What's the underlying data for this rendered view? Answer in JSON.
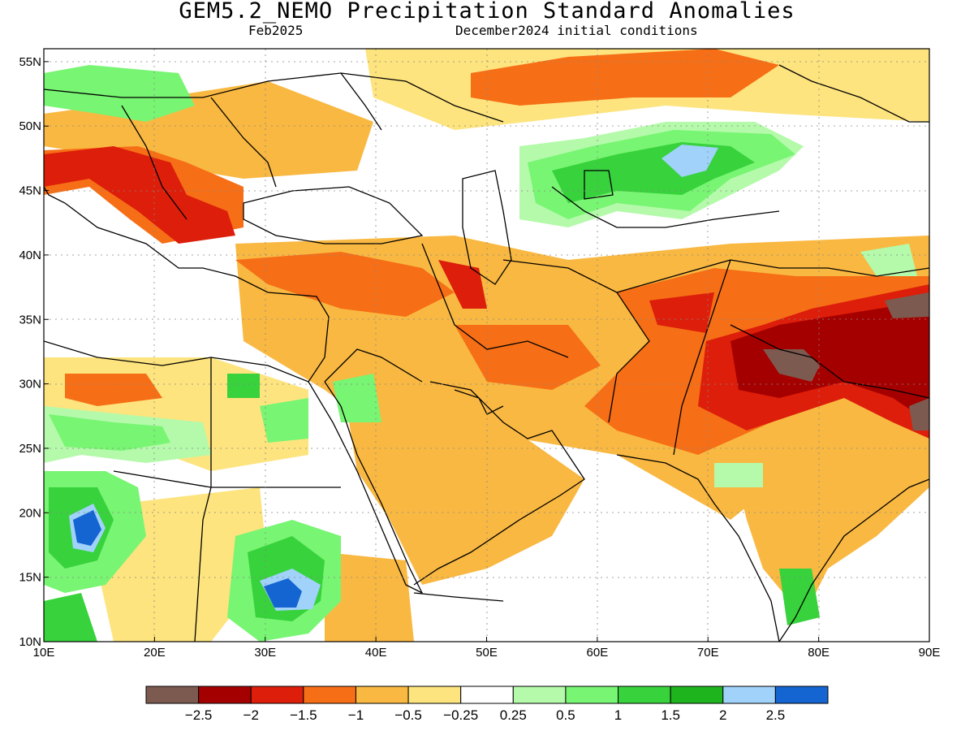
{
  "header": {
    "title": "GEM5.2_NEMO Precipitation Standard Anomalies",
    "month": "Feb2025",
    "init": "December2024 initial conditions"
  },
  "map": {
    "lon_range": [
      10,
      90
    ],
    "lat_range": [
      10,
      56
    ],
    "lon_ticks": [
      "10E",
      "20E",
      "30E",
      "40E",
      "50E",
      "60E",
      "70E",
      "80E",
      "90E"
    ],
    "lat_ticks": [
      "10N",
      "15N",
      "20N",
      "25N",
      "30N",
      "35N",
      "40N",
      "45N",
      "50N",
      "55N"
    ],
    "land_color": "#ffffff",
    "coastline_color": "#000000"
  },
  "colorbar": {
    "colors": [
      "#7d5a4f",
      "#a50000",
      "#dc1e0a",
      "#f66e16",
      "#f9b841",
      "#fde47e",
      "#ffffff",
      "#b4faaa",
      "#78f573",
      "#37d23c",
      "#1eb41e",
      "#a0d2fa",
      "#1464d2"
    ],
    "labels": [
      "−2.5",
      "−2",
      "−1.5",
      "−1",
      "−0.5",
      "−0.25",
      "0.25",
      "0.5",
      "1",
      "1.5",
      "2",
      "2.5"
    ]
  }
}
